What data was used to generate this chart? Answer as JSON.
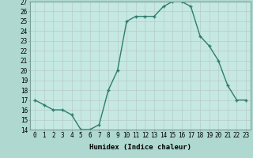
{
  "xlabel": "Humidex (Indice chaleur)",
  "ylabel": "",
  "x": [
    0,
    1,
    2,
    3,
    4,
    5,
    6,
    7,
    8,
    9,
    10,
    11,
    12,
    13,
    14,
    15,
    16,
    17,
    18,
    19,
    20,
    21,
    22,
    23
  ],
  "y": [
    17,
    16.5,
    16,
    16,
    15.5,
    14,
    14,
    14.5,
    18,
    20,
    25,
    25.5,
    25.5,
    25.5,
    26.5,
    27,
    27,
    26.5,
    23.5,
    22.5,
    21,
    18.5,
    17,
    17
  ],
  "line_color": "#2e7d6e",
  "marker": "+",
  "marker_color": "#2e7d6e",
  "bg_color": "#aed8d0",
  "plot_bg_color": "#c5e8e2",
  "grid_color": "#b8ccc9",
  "ylim": [
    14,
    27
  ],
  "yticks": [
    14,
    15,
    16,
    17,
    18,
    19,
    20,
    21,
    22,
    23,
    24,
    25,
    26,
    27
  ],
  "xticks": [
    0,
    1,
    2,
    3,
    4,
    5,
    6,
    7,
    8,
    9,
    10,
    11,
    12,
    13,
    14,
    15,
    16,
    17,
    18,
    19,
    20,
    21,
    22,
    23
  ],
  "tick_fontsize": 5.5,
  "label_fontsize": 6.5,
  "linewidth": 1.0,
  "markersize": 3.5
}
